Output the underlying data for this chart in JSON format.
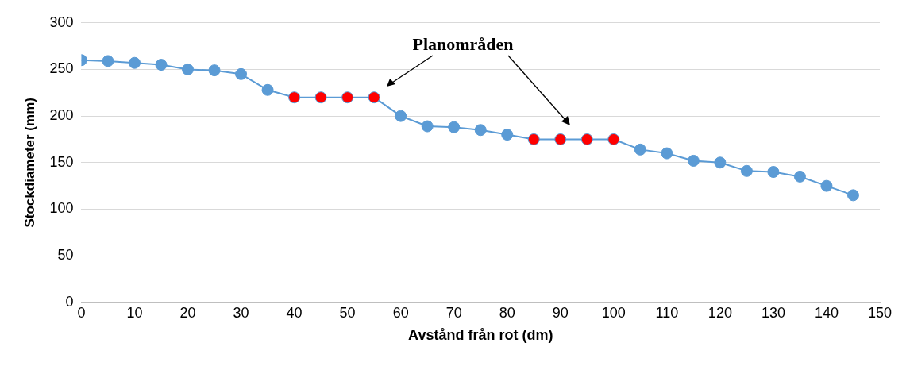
{
  "chart_data": {
    "type": "line",
    "xlabel": "Avstånd från rot (dm)",
    "ylabel": "Stockdiameter (mm)",
    "annotations": [
      "Planområden"
    ],
    "x": [
      0,
      5,
      10,
      15,
      20,
      25,
      30,
      35,
      40,
      45,
      50,
      55,
      60,
      65,
      70,
      75,
      80,
      85,
      90,
      95,
      100,
      105,
      110,
      115,
      120,
      125,
      130,
      135,
      140,
      145
    ],
    "series": [
      {
        "color": "#5b9bd5",
        "colors": [
          "#5b9bd5",
          "#5b9bd5",
          "#5b9bd5",
          "#5b9bd5",
          "#5b9bd5",
          "#5b9bd5",
          "#5b9bd5",
          "#5b9bd5",
          "#ff0000",
          "#ff0000",
          "#ff0000",
          "#ff0000",
          "#5b9bd5",
          "#5b9bd5",
          "#5b9bd5",
          "#5b9bd5",
          "#5b9bd5",
          "#ff0000",
          "#ff0000",
          "#ff0000",
          "#ff0000",
          "#5b9bd5",
          "#5b9bd5",
          "#5b9bd5",
          "#5b9bd5",
          "#5b9bd5",
          "#5b9bd5",
          "#5b9bd5",
          "#5b9bd5",
          "#5b9bd5"
        ],
        "values": [
          260,
          259,
          257,
          255,
          250,
          249,
          245,
          228,
          220,
          220,
          220,
          220,
          200,
          189,
          188,
          185,
          180,
          175,
          175,
          175,
          175,
          164,
          160,
          152,
          150,
          141,
          140,
          135,
          125,
          115
        ]
      }
    ],
    "xlim": [
      0,
      150
    ],
    "xticks": [
      0,
      10,
      20,
      30,
      40,
      50,
      60,
      70,
      80,
      90,
      100,
      110,
      120,
      130,
      140,
      150
    ],
    "ylim": [
      0,
      300
    ],
    "yticks": [
      0,
      50,
      100,
      150,
      200,
      250,
      300
    ],
    "grid": "y",
    "legend": false,
    "marker": "circle",
    "line_style": "solid"
  }
}
